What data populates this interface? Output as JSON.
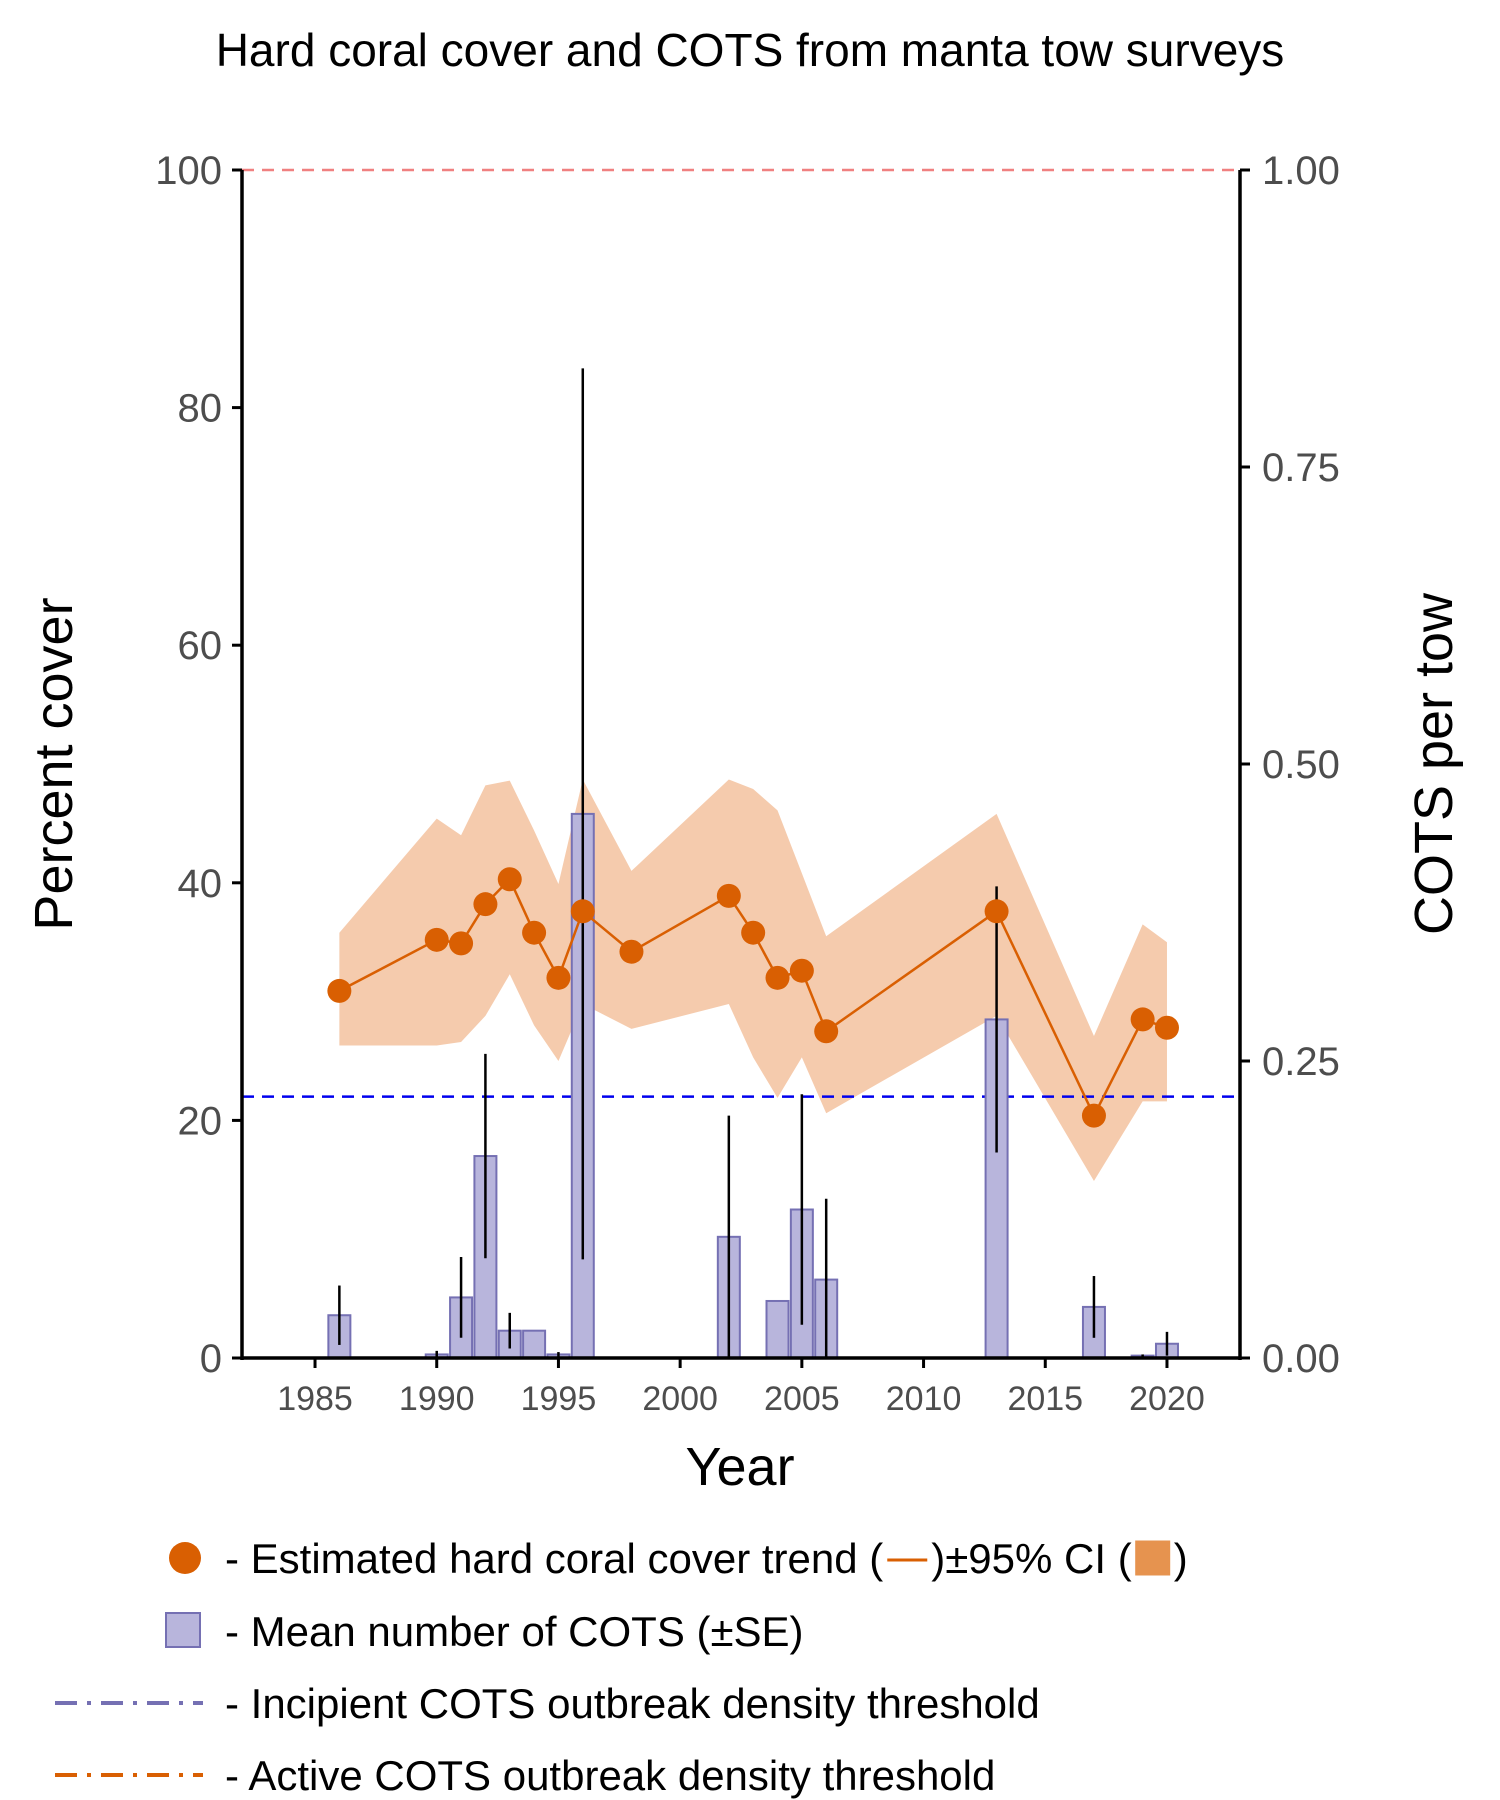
{
  "chart_data": {
    "type": "bar",
    "title": "Hard coral cover and COTS from manta tow surveys",
    "xlabel": "Year",
    "ylabel": "Percent cover",
    "ylabel_right": "COTS per tow",
    "xlim": [
      1982,
      2023
    ],
    "ylim": [
      0,
      100
    ],
    "ylim_right": [
      0,
      1.0
    ],
    "x_ticks": [
      1985,
      1990,
      1995,
      2000,
      2005,
      2010,
      2015,
      2020
    ],
    "x_tick_labels": [
      "1985",
      "1990",
      "1995",
      "2000",
      "2005",
      "2010",
      "2015",
      "2020"
    ],
    "y_ticks": [
      0,
      20,
      40,
      60,
      80,
      100
    ],
    "y_tick_labels": [
      "0",
      "20",
      "40",
      "60",
      "80",
      "100"
    ],
    "y_right_ticks": [
      0,
      0.25,
      0.5,
      0.75,
      1.0
    ],
    "y_right_tick_labels": [
      "0.00",
      "0.25",
      "0.50",
      "0.75",
      "1.00"
    ],
    "grid": false,
    "legend_position": "bottom",
    "colors": {
      "coral": "#d95f02",
      "ci_band": "#f5cbad",
      "ci_legend": "#e6934f",
      "cots_fill": "#b8b5dc",
      "cots_edge": "#7570b3",
      "incipient": "#0000ee",
      "active": "#f08080"
    },
    "series": [
      {
        "name": "Estimated hard coral cover trend",
        "kind": "line_points",
        "axis": "left",
        "x": [
          1986,
          1990,
          1991,
          1992,
          1993,
          1994,
          1995,
          1996,
          1998,
          2002,
          2003,
          2004,
          2005,
          2006,
          2013,
          2017,
          2019,
          2020
        ],
        "y": [
          30.9,
          35.2,
          34.9,
          38.2,
          40.3,
          35.8,
          32.0,
          37.6,
          34.2,
          38.9,
          35.8,
          32.0,
          32.6,
          27.5,
          37.6,
          20.4,
          28.5,
          27.8
        ],
        "ci_lower": [
          26.3,
          26.3,
          26.6,
          28.8,
          32.3,
          28.0,
          25.0,
          29.8,
          27.7,
          29.8,
          25.3,
          21.9,
          25.3,
          20.6,
          28.8,
          14.9,
          21.6,
          21.6
        ],
        "ci_upper": [
          35.8,
          45.4,
          44.0,
          48.2,
          48.6,
          44.4,
          39.9,
          48.7,
          41.0,
          48.7,
          47.9,
          46.1,
          40.8,
          35.5,
          45.8,
          27.1,
          36.5,
          35.0
        ]
      },
      {
        "name": "Mean number of COTS",
        "kind": "bars_errorbars",
        "axis": "right",
        "x": [
          1986,
          1990,
          1991,
          1992,
          1993,
          1994,
          1995,
          1996,
          2002,
          2004,
          2005,
          2006,
          2013,
          2017,
          2019,
          2020
        ],
        "y": [
          0.036,
          0.003,
          0.051,
          0.17,
          0.023,
          0.023,
          0.003,
          0.458,
          0.102,
          0.048,
          0.125,
          0.066,
          0.285,
          0.043,
          0.002,
          0.012
        ],
        "se": [
          0.025,
          0.003,
          0.034,
          0.086,
          0.015,
          0.0,
          0.002,
          0.375,
          0.102,
          0.0,
          0.097,
          0.068,
          0.112,
          0.026,
          0.001,
          0.01
        ]
      }
    ],
    "thresholds": [
      {
        "name": "Incipient COTS outbreak density threshold",
        "axis": "right",
        "value": 0.22
      },
      {
        "name": "Active COTS outbreak density threshold",
        "axis": "right",
        "value": 1.0
      }
    ],
    "legend": [
      {
        "text": "- Estimated hard coral cover trend (",
        "ci_text": ")±95% CI (",
        "end_text": ")"
      },
      {
        "text": "- Mean number of COTS (±SE)"
      },
      {
        "text": "- Incipient COTS outbreak density threshold"
      },
      {
        "text": "- Active COTS outbreak density threshold"
      }
    ]
  }
}
